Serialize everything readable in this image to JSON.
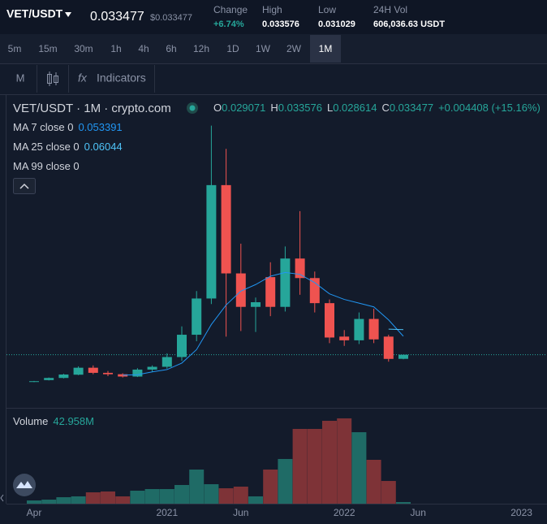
{
  "header": {
    "pair": "VET/USDT",
    "price": "0.033477",
    "price_usd": "$0.033477",
    "stats": [
      {
        "label": "Change",
        "value": "+6.74%"
      },
      {
        "label": "High",
        "value": "0.033576"
      },
      {
        "label": "Low",
        "value": "0.031029"
      },
      {
        "label": "24H Vol",
        "value": "606,036.63 USDT"
      }
    ]
  },
  "intervals": [
    "5m",
    "15m",
    "30m",
    "1h",
    "4h",
    "6h",
    "12h",
    "1D",
    "1W",
    "2W",
    "1M"
  ],
  "selected_interval": 10,
  "toolbar": {
    "mode": "M",
    "fx": "fx",
    "indicators": "Indicators"
  },
  "chart_data": {
    "type": "candlestick",
    "title": "VET/USDT · 1M · crypto.com",
    "ohlc_prefixes": [
      "O",
      "H",
      "L",
      "C"
    ],
    "change": "+0.004408 (+15.16%)",
    "categories": [
      "Apr",
      null,
      null,
      null,
      null,
      null,
      null,
      null,
      null,
      "2021",
      null,
      null,
      null,
      null,
      "Jun",
      null,
      null,
      null,
      null,
      null,
      null,
      "2022",
      null,
      null,
      null,
      null,
      "Jun",
      null,
      null,
      null,
      null,
      null,
      null,
      "2023"
    ],
    "open": [
      0.0045,
      0.0062,
      0.0085,
      0.012,
      0.0195,
      0.014,
      0.0125,
      0.01,
      0.0175,
      0.0205,
      0.031,
      0.055,
      0.094,
      0.216,
      0.121,
      0.085,
      0.117,
      0.085,
      0.137,
      0.116,
      0.089,
      0.053,
      0.049,
      0.072,
      0.053,
      0.029071,
      null,
      null,
      null,
      null,
      null,
      null,
      null,
      null
    ],
    "high": [
      0.0053,
      0.009,
      0.013,
      0.021,
      0.022,
      0.016,
      0.0135,
      0.019,
      0.022,
      0.035,
      0.064,
      0.102,
      0.28,
      0.255,
      0.153,
      0.095,
      0.133,
      0.15,
      0.188,
      0.123,
      0.093,
      0.06,
      0.079,
      0.083,
      0.055,
      0.033576,
      null,
      null,
      null,
      null,
      null,
      null,
      null,
      null
    ],
    "low": [
      0.004,
      0.0058,
      0.008,
      0.0115,
      0.0125,
      0.0105,
      0.009,
      0.0095,
      0.015,
      0.0185,
      0.027,
      0.048,
      0.088,
      0.053,
      0.059,
      0.058,
      0.075,
      0.08,
      0.098,
      0.079,
      0.046,
      0.043,
      0.045,
      0.046,
      0.026,
      0.028614,
      null,
      null,
      null,
      null,
      null,
      null,
      null,
      null
    ],
    "close": [
      0.005,
      0.0085,
      0.0122,
      0.0195,
      0.014,
      0.0125,
      0.01,
      0.0175,
      0.0205,
      0.031,
      0.055,
      0.094,
      0.216,
      0.121,
      0.085,
      0.09,
      0.085,
      0.137,
      0.116,
      0.089,
      0.052,
      0.049,
      0.072,
      0.05,
      0.029,
      0.033477,
      null,
      null,
      null,
      null,
      null,
      null,
      null,
      null
    ],
    "up_color": "#26a69a",
    "down_color": "#ef5350",
    "ylim": [
      -0.0219,
      0.3103
    ],
    "ma": [
      {
        "name": "MA 7 close 0",
        "color": "#2196f3",
        "values": [
          null,
          null,
          null,
          null,
          null,
          null,
          0.0115,
          0.012,
          0.015,
          0.0175,
          0.0245,
          0.039,
          0.066,
          0.087,
          0.102,
          0.109,
          0.118,
          0.122,
          0.12,
          0.111,
          0.099,
          0.093,
          0.089,
          0.085,
          0.071,
          0.053391,
          null,
          null,
          null,
          null,
          null,
          null,
          null,
          null
        ]
      },
      {
        "name": "MA 25 close 0",
        "color": "#4fc3f7",
        "values": [
          null,
          null,
          null,
          null,
          null,
          null,
          null,
          null,
          null,
          null,
          null,
          null,
          null,
          null,
          null,
          null,
          null,
          null,
          null,
          null,
          null,
          null,
          null,
          null,
          0.061,
          0.06044,
          null,
          null,
          null,
          null,
          null,
          null,
          null,
          null
        ]
      },
      {
        "name": "MA 99 close 0",
        "color": "#ff9800",
        "values": [
          null,
          null,
          null,
          null,
          null,
          null,
          null,
          null,
          null,
          null,
          null,
          null,
          null,
          null,
          null,
          null,
          null,
          null,
          null,
          null,
          null,
          null,
          null,
          null,
          null,
          null,
          null,
          null,
          null,
          null,
          null,
          null,
          null,
          null
        ]
      }
    ],
    "volume": {
      "label": "Volume",
      "values": [
        85000000,
        106000000,
        170000000,
        192000000,
        298000000,
        320000000,
        192000000,
        341000000,
        383000000,
        383000000,
        490000000,
        895000000,
        511000000,
        405000000,
        447000000,
        192000000,
        895000000,
        1172000000,
        1960000000,
        1960000000,
        2173000000,
        2237000000,
        1874000000,
        1150000000,
        596000000,
        42958000,
        null,
        null,
        null,
        null,
        null,
        null,
        null,
        null
      ],
      "value_labels": [
        null,
        null,
        null,
        null,
        null,
        null,
        null,
        null,
        null,
        null,
        null,
        null,
        null,
        null,
        null,
        null,
        null,
        null,
        null,
        null,
        null,
        null,
        null,
        null,
        null,
        "42.958M",
        null,
        null,
        null,
        null,
        null,
        null,
        null,
        null
      ],
      "ylim": [
        0,
        2300000000
      ],
      "up_color": "#1f6b66",
      "down_color": "#7e3337"
    }
  }
}
